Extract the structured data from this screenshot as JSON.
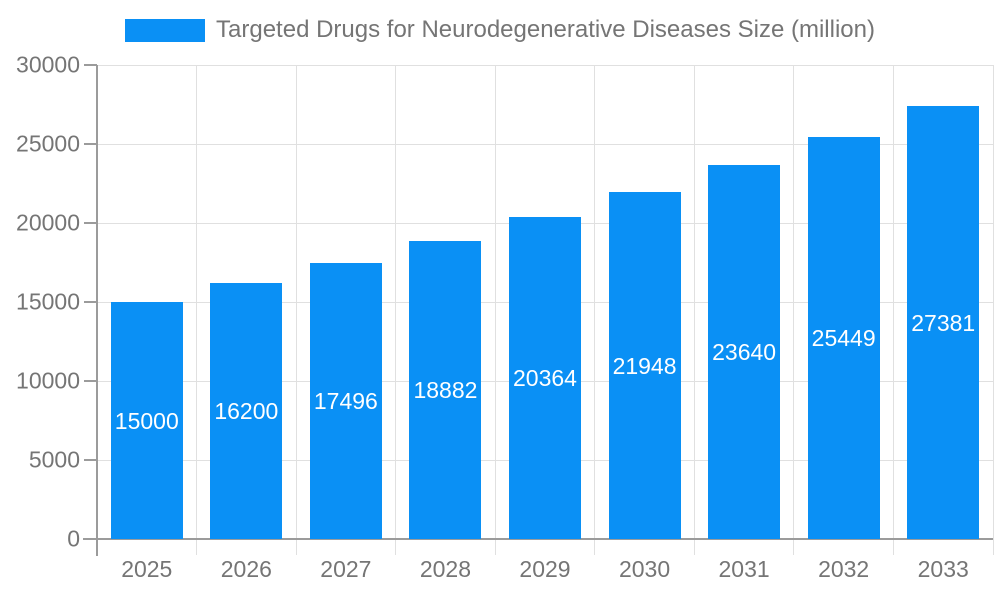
{
  "chart_data": {
    "type": "bar",
    "title": "",
    "legend": "Targeted Drugs for Neurodegenerative Diseases Size (million)",
    "legend_position": "top-center",
    "categories": [
      "2025",
      "2026",
      "2027",
      "2028",
      "2029",
      "2030",
      "2031",
      "2032",
      "2033"
    ],
    "values": [
      15000,
      16200,
      17496,
      18882,
      20364,
      21948,
      23640,
      25449,
      27381
    ],
    "value_labels": [
      "15000",
      "16200",
      "17496",
      "18882",
      "20364",
      "21948",
      "23640",
      "25449",
      "27381"
    ],
    "xlabel": "",
    "ylabel": "",
    "ylim": [
      0,
      30000
    ],
    "yticks": [
      0,
      5000,
      10000,
      15000,
      20000,
      25000,
      30000
    ],
    "grid": true,
    "colors": {
      "bar": "#0A90F5",
      "value_label": "#FFFFFF",
      "axis_text": "#757575",
      "axis_line": "#9B9B9B",
      "gridline": "#E0E0E0",
      "background": "#FFFFFF"
    }
  }
}
